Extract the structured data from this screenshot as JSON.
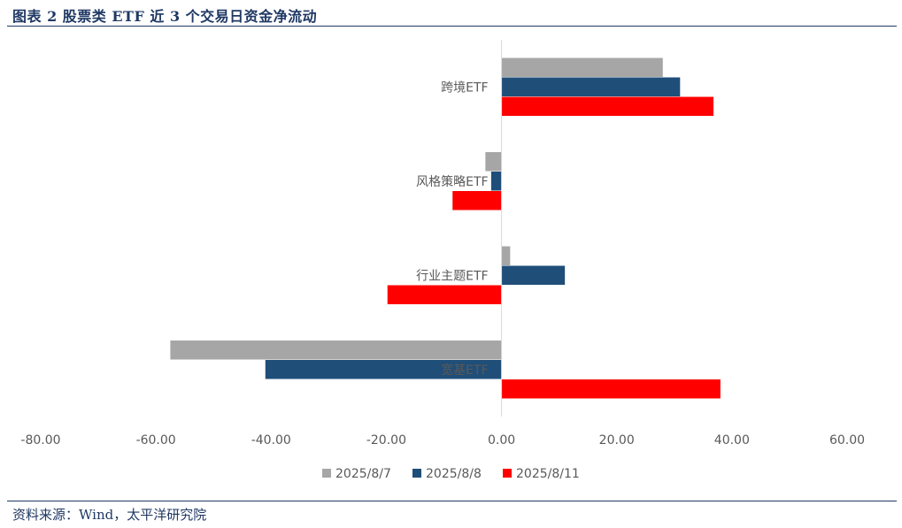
{
  "header": {
    "title": "图表 2 股票类 ETF 近 3 个交易日资金净流动"
  },
  "footer": {
    "source": "资料来源：Wind，太平洋研究院"
  },
  "colors": {
    "accent": "#1f3864",
    "series_1": "#a6a6a6",
    "series_2": "#1f4e79",
    "series_3": "#ff0000"
  },
  "chart_data": {
    "type": "bar",
    "orientation": "horizontal",
    "categories": [
      "跨境ETF",
      "风格策略ETF",
      "行业主题ETF",
      "宽基ETF"
    ],
    "series": [
      {
        "name": "2025/8/7",
        "values": [
          28.0,
          -2.8,
          1.5,
          -57.5
        ]
      },
      {
        "name": "2025/8/8",
        "values": [
          31.0,
          -1.8,
          11.0,
          -41.0
        ]
      },
      {
        "name": "2025/8/11",
        "values": [
          36.8,
          -8.5,
          -19.8,
          38.0
        ]
      }
    ],
    "xlim": [
      -80,
      60
    ],
    "xticks": [
      -80,
      -60,
      -40,
      -20,
      0,
      20,
      40,
      60
    ],
    "xtick_labels": [
      "-80.00",
      "-60.00",
      "-40.00",
      "-20.00",
      "0.00",
      "20.00",
      "40.00",
      "60.00"
    ],
    "grid": false,
    "legend": "bottom"
  }
}
